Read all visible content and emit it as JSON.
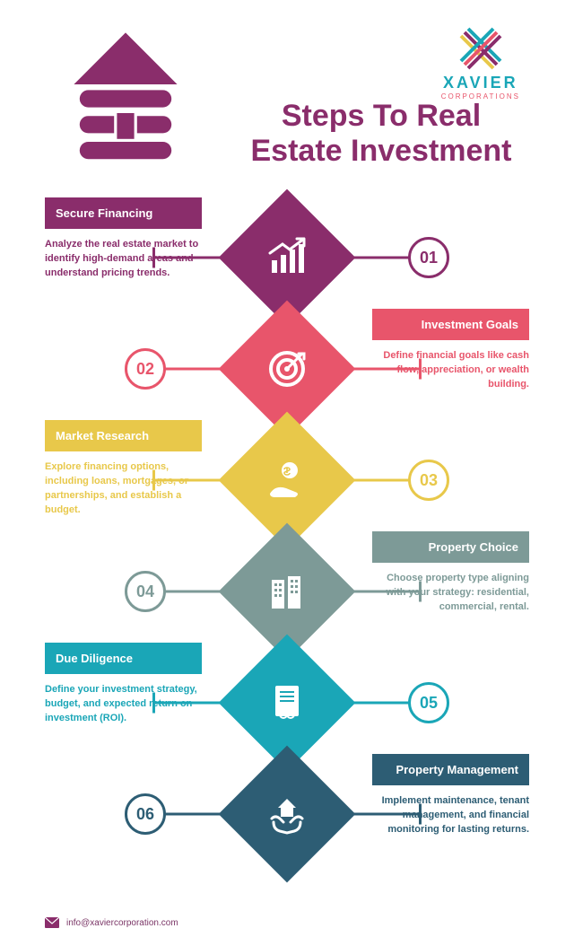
{
  "brand": {
    "name": "XAVIER",
    "sub": "CORPORATIONS",
    "name_color": "#1aa6b7",
    "sub_color": "#e8556b"
  },
  "logo": {
    "colors": [
      "#8a2d6b",
      "#1aa6b7",
      "#e8c84a",
      "#e8556b"
    ]
  },
  "title": {
    "text": "Steps To Real Estate Investment",
    "color": "#8a2d6b"
  },
  "house_color": "#8a2d6b",
  "contact_email": "info@xaviercorporation.com",
  "steps": [
    {
      "num": "01",
      "side": "left",
      "color": "#8a2d6b",
      "title": "Secure Financing",
      "desc": "Analyze the real estate market to identify high-demand areas and understand pricing trends.",
      "icon": "chart-up"
    },
    {
      "num": "02",
      "side": "right",
      "color": "#e8556b",
      "title": "Investment Goals",
      "desc": "Define financial goals like cash flow, appreciation, or wealth building.",
      "icon": "target"
    },
    {
      "num": "03",
      "side": "left",
      "color": "#e8c84a",
      "title": "Market Research",
      "desc": "Explore financing options, including loans, mortgages, or partnerships, and establish a budget.",
      "icon": "money-hand"
    },
    {
      "num": "04",
      "side": "right",
      "color": "#7d9a97",
      "title": "Property Choice",
      "desc": "Choose property type aligning with your strategy: residential, commercial, rental.",
      "icon": "buildings"
    },
    {
      "num": "05",
      "side": "left",
      "color": "#1aa6b7",
      "title": "Due Diligence",
      "desc": "Define your investment strategy, budget, and expected return on investment (ROI).",
      "icon": "document-scale"
    },
    {
      "num": "06",
      "side": "right",
      "color": "#2d5d74",
      "title": "Property Management",
      "desc": "Implement maintenance, tenant management, and financial monitoring for lasting returns.",
      "icon": "hands-house"
    }
  ]
}
